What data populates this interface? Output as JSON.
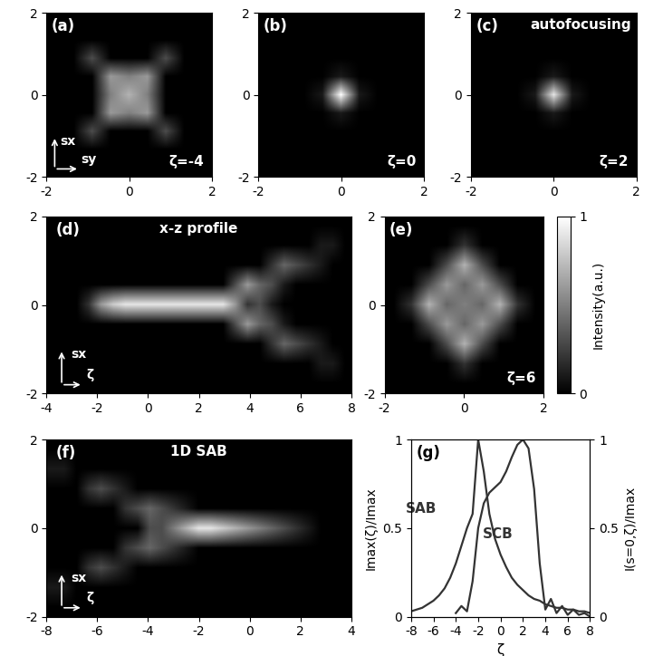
{
  "chart_data": [
    {
      "type": "heatmap",
      "label": "(a)",
      "note": "ζ=-4",
      "xlabel": "sy",
      "ylabel": "sx",
      "xlim": [
        -2,
        2
      ],
      "ylim": [
        -2,
        2
      ],
      "xticks": [
        -2,
        0,
        2
      ],
      "yticks": [
        -2,
        0,
        2
      ],
      "color_range": [
        0,
        1
      ],
      "cells": [
        [
          0,
          0,
          0,
          0,
          0,
          0,
          0,
          0,
          0
        ],
        [
          0,
          0,
          0,
          0,
          0,
          0,
          0,
          0,
          0
        ],
        [
          0,
          0,
          0.3,
          0,
          0,
          0,
          0.3,
          0,
          0
        ],
        [
          0,
          0,
          0,
          0.6,
          0.5,
          0.6,
          0,
          0,
          0
        ],
        [
          0,
          0,
          0,
          0.5,
          0.7,
          0.5,
          0,
          0,
          0
        ],
        [
          0,
          0,
          0,
          0.6,
          0.5,
          0.6,
          0,
          0,
          0
        ],
        [
          0,
          0,
          0.3,
          0,
          0,
          0,
          0.3,
          0,
          0
        ],
        [
          0,
          0,
          0,
          0,
          0,
          0,
          0,
          0,
          0
        ],
        [
          0,
          0,
          0,
          0,
          0,
          0,
          0,
          0,
          0
        ]
      ]
    },
    {
      "type": "heatmap",
      "label": "(b)",
      "note": "ζ=0",
      "xlim": [
        -2,
        2
      ],
      "ylim": [
        -2,
        2
      ],
      "xticks": [
        -2,
        0,
        2
      ],
      "yticks": [
        -2,
        0,
        2
      ],
      "color_range": [
        0,
        1
      ],
      "cells": [
        [
          0,
          0,
          0,
          0,
          0,
          0,
          0,
          0,
          0
        ],
        [
          0,
          0,
          0,
          0,
          0,
          0,
          0,
          0,
          0
        ],
        [
          0,
          0,
          0,
          0,
          0,
          0,
          0,
          0,
          0
        ],
        [
          0,
          0,
          0,
          0,
          0.1,
          0,
          0,
          0,
          0
        ],
        [
          0,
          0,
          0,
          0.1,
          1.0,
          0.1,
          0,
          0,
          0
        ],
        [
          0,
          0,
          0,
          0,
          0.1,
          0,
          0,
          0,
          0
        ],
        [
          0,
          0,
          0,
          0,
          0,
          0,
          0,
          0,
          0
        ],
        [
          0,
          0,
          0,
          0,
          0,
          0,
          0,
          0,
          0
        ],
        [
          0,
          0,
          0,
          0,
          0,
          0,
          0,
          0,
          0
        ]
      ]
    },
    {
      "type": "heatmap",
      "label": "(c)",
      "title": "autofocusing",
      "note": "ζ=2",
      "xlim": [
        -2,
        2
      ],
      "ylim": [
        -2,
        2
      ],
      "xticks": [
        -2,
        0,
        2
      ],
      "yticks": [
        -2,
        0,
        2
      ],
      "color_range": [
        0,
        1
      ],
      "cells": [
        [
          0,
          0,
          0,
          0,
          0,
          0,
          0,
          0,
          0
        ],
        [
          0,
          0,
          0,
          0,
          0,
          0,
          0,
          0,
          0
        ],
        [
          0,
          0,
          0,
          0,
          0,
          0,
          0,
          0,
          0
        ],
        [
          0,
          0,
          0,
          0,
          0.1,
          0,
          0,
          0,
          0
        ],
        [
          0,
          0,
          0,
          0.1,
          0.9,
          0.1,
          0,
          0,
          0
        ],
        [
          0,
          0,
          0,
          0,
          0.1,
          0,
          0,
          0,
          0
        ],
        [
          0,
          0,
          0,
          0,
          0,
          0,
          0,
          0,
          0
        ],
        [
          0,
          0,
          0,
          0,
          0,
          0,
          0,
          0,
          0
        ],
        [
          0,
          0,
          0,
          0,
          0,
          0,
          0,
          0,
          0
        ]
      ]
    },
    {
      "type": "heatmap",
      "label": "(d)",
      "title": "x-z profile",
      "xlabel": "ζ",
      "ylabel": "sx",
      "xlim": [
        -4,
        8
      ],
      "ylim": [
        -2,
        2
      ],
      "xticks": [
        -4,
        -2,
        0,
        2,
        4,
        6,
        8
      ],
      "yticks": [
        -2,
        0,
        2
      ],
      "color_range": [
        0,
        1
      ],
      "cells": [
        [
          0,
          0,
          0,
          0,
          0,
          0,
          0,
          0,
          0,
          0,
          0,
          0,
          0,
          0,
          0,
          0,
          0,
          0,
          0,
          0,
          0,
          0,
          0,
          0,
          0
        ],
        [
          0,
          0,
          0,
          0,
          0,
          0,
          0,
          0,
          0,
          0,
          0,
          0,
          0,
          0,
          0,
          0,
          0,
          0,
          0,
          0,
          0,
          0,
          0.1,
          0.1,
          0
        ],
        [
          0,
          0,
          0,
          0,
          0,
          0,
          0,
          0,
          0,
          0,
          0,
          0,
          0,
          0,
          0,
          0,
          0,
          0,
          0.2,
          0.4,
          0.3,
          0.2,
          0.1,
          0,
          0
        ],
        [
          0,
          0,
          0,
          0,
          0,
          0,
          0,
          0,
          0,
          0,
          0,
          0,
          0,
          0,
          0,
          0.3,
          0.6,
          0.4,
          0.3,
          0.1,
          0,
          0,
          0,
          0,
          0
        ],
        [
          0,
          0,
          0,
          0.2,
          0.6,
          0.8,
          0.9,
          0.9,
          0.9,
          0.9,
          0.9,
          0.9,
          0.9,
          0.9,
          0.9,
          0.6,
          0.2,
          0.3,
          0.1,
          0,
          0,
          0,
          0,
          0,
          0
        ],
        [
          0,
          0,
          0,
          0,
          0,
          0,
          0,
          0,
          0,
          0,
          0,
          0,
          0,
          0,
          0,
          0.3,
          0.6,
          0.4,
          0.3,
          0.1,
          0,
          0,
          0,
          0,
          0
        ],
        [
          0,
          0,
          0,
          0,
          0,
          0,
          0,
          0,
          0,
          0,
          0,
          0,
          0,
          0,
          0,
          0,
          0,
          0,
          0.2,
          0.4,
          0.3,
          0.2,
          0.1,
          0,
          0
        ],
        [
          0,
          0,
          0,
          0,
          0,
          0,
          0,
          0,
          0,
          0,
          0,
          0,
          0,
          0,
          0,
          0,
          0,
          0,
          0,
          0,
          0,
          0,
          0.1,
          0.1,
          0
        ],
        [
          0,
          0,
          0,
          0,
          0,
          0,
          0,
          0,
          0,
          0,
          0,
          0,
          0,
          0,
          0,
          0,
          0,
          0,
          0,
          0,
          0,
          0,
          0,
          0,
          0
        ]
      ]
    },
    {
      "type": "heatmap",
      "label": "(e)",
      "note": "ζ=6",
      "xlim": [
        -2,
        2
      ],
      "ylim": [
        -2,
        2
      ],
      "xticks": [
        -2,
        0,
        2
      ],
      "yticks": [
        -2,
        0,
        2
      ],
      "color_range": [
        0,
        1
      ],
      "color_ticks": [
        0,
        1
      ],
      "color_label": "Intensity(a.u.)",
      "cells": [
        [
          0,
          0,
          0,
          0,
          0,
          0,
          0,
          0,
          0
        ],
        [
          0,
          0,
          0,
          0,
          0.2,
          0,
          0,
          0,
          0
        ],
        [
          0,
          0,
          0,
          0.3,
          0.7,
          0.3,
          0,
          0,
          0
        ],
        [
          0,
          0,
          0.3,
          0.6,
          0.4,
          0.6,
          0.3,
          0,
          0
        ],
        [
          0,
          0.2,
          0.7,
          0.4,
          0.5,
          0.4,
          0.7,
          0.2,
          0
        ],
        [
          0,
          0,
          0.3,
          0.6,
          0.4,
          0.6,
          0.3,
          0,
          0
        ],
        [
          0,
          0,
          0,
          0.3,
          0.7,
          0.3,
          0,
          0,
          0
        ],
        [
          0,
          0,
          0,
          0,
          0.2,
          0,
          0,
          0,
          0
        ],
        [
          0,
          0,
          0,
          0,
          0,
          0,
          0,
          0,
          0
        ]
      ]
    },
    {
      "type": "heatmap",
      "label": "(f)",
      "title": "1D SAB",
      "xlabel": "ζ",
      "ylabel": "sx",
      "xlim": [
        -8,
        4
      ],
      "ylim": [
        -2,
        2
      ],
      "xticks": [
        -8,
        -6,
        -4,
        -2,
        0,
        2,
        4
      ],
      "yticks": [
        -2,
        0,
        2
      ],
      "color_range": [
        0,
        1
      ],
      "cells": [
        [
          0,
          0,
          0,
          0,
          0,
          0,
          0,
          0,
          0,
          0,
          0,
          0,
          0,
          0,
          0,
          0,
          0,
          0,
          0,
          0,
          0,
          0,
          0,
          0,
          0
        ],
        [
          0.1,
          0.1,
          0,
          0,
          0,
          0,
          0,
          0,
          0,
          0,
          0,
          0,
          0,
          0,
          0,
          0,
          0,
          0,
          0,
          0,
          0,
          0,
          0,
          0,
          0
        ],
        [
          0,
          0,
          0,
          0.2,
          0.3,
          0.2,
          0.1,
          0,
          0,
          0,
          0,
          0,
          0,
          0,
          0,
          0,
          0,
          0,
          0,
          0,
          0,
          0,
          0,
          0,
          0
        ],
        [
          0,
          0,
          0,
          0,
          0,
          0,
          0.2,
          0.3,
          0.4,
          0.3,
          0.2,
          0.1,
          0,
          0,
          0,
          0,
          0,
          0,
          0,
          0,
          0,
          0,
          0,
          0,
          0
        ],
        [
          0,
          0,
          0,
          0,
          0,
          0,
          0,
          0,
          0.3,
          0.3,
          0.5,
          0.7,
          0.9,
          0.9,
          0.8,
          0.7,
          0.6,
          0.5,
          0.4,
          0.3,
          0.2,
          0.1,
          0,
          0,
          0
        ],
        [
          0,
          0,
          0,
          0,
          0,
          0,
          0.2,
          0.3,
          0.4,
          0.3,
          0.2,
          0.1,
          0,
          0,
          0,
          0,
          0,
          0,
          0,
          0,
          0,
          0,
          0,
          0,
          0
        ],
        [
          0,
          0,
          0,
          0.2,
          0.3,
          0.2,
          0.1,
          0,
          0,
          0,
          0,
          0,
          0,
          0,
          0,
          0,
          0,
          0,
          0,
          0,
          0,
          0,
          0,
          0,
          0
        ],
        [
          0.1,
          0.1,
          0,
          0,
          0,
          0,
          0,
          0,
          0,
          0,
          0,
          0,
          0,
          0,
          0,
          0,
          0,
          0,
          0,
          0,
          0,
          0,
          0,
          0,
          0
        ],
        [
          0,
          0,
          0,
          0,
          0,
          0,
          0,
          0,
          0,
          0,
          0,
          0,
          0,
          0,
          0,
          0,
          0,
          0,
          0,
          0,
          0,
          0,
          0,
          0,
          0
        ]
      ]
    },
    {
      "type": "line",
      "label": "(g)",
      "xlabel": "ζ",
      "ylabel": "Imax(ζ)/Imax",
      "y2label": "I(s=0,ζ)/Imax",
      "xlim": [
        -8,
        8
      ],
      "xticks": [
        -8,
        -6,
        -4,
        -2,
        0,
        2,
        4,
        6,
        8
      ],
      "ylim": [
        0,
        1
      ],
      "yticks": [
        0,
        0.5,
        1
      ],
      "y2lim": [
        0,
        1
      ],
      "y2ticks": [
        0,
        0.5,
        1
      ],
      "x": [
        -8,
        -7.5,
        -7,
        -6.5,
        -6,
        -5.5,
        -5,
        -4.5,
        -4,
        -3.5,
        -3,
        -2.5,
        -2,
        -1.5,
        -1,
        -0.5,
        0,
        0.5,
        1,
        1.5,
        2,
        2.5,
        3,
        3.5,
        4,
        4.5,
        5,
        5.5,
        6,
        6.5,
        7,
        7.5,
        8
      ],
      "series": [
        {
          "name": "SAB",
          "color": "#333333",
          "values": [
            0.03,
            0.04,
            0.05,
            0.07,
            0.09,
            0.12,
            0.16,
            0.22,
            0.3,
            0.4,
            0.5,
            0.58,
            1.0,
            0.82,
            0.58,
            0.44,
            0.35,
            0.28,
            0.22,
            0.18,
            0.15,
            0.12,
            0.1,
            0.09,
            0.07,
            0.06,
            0.05,
            0.05,
            0.04,
            0.04,
            0.03,
            0.03,
            0.02
          ]
        },
        {
          "name": "SCB",
          "color": "#333333",
          "axis": "y2",
          "values": [
            null,
            null,
            null,
            null,
            null,
            null,
            null,
            null,
            0.02,
            0.06,
            0.03,
            0.2,
            0.5,
            0.64,
            0.7,
            0.73,
            0.76,
            0.82,
            0.9,
            0.97,
            1.0,
            0.95,
            0.72,
            0.3,
            0.04,
            0.1,
            0.02,
            0.06,
            0.01,
            0.04,
            0.01,
            0.02,
            0.0
          ]
        }
      ]
    }
  ]
}
